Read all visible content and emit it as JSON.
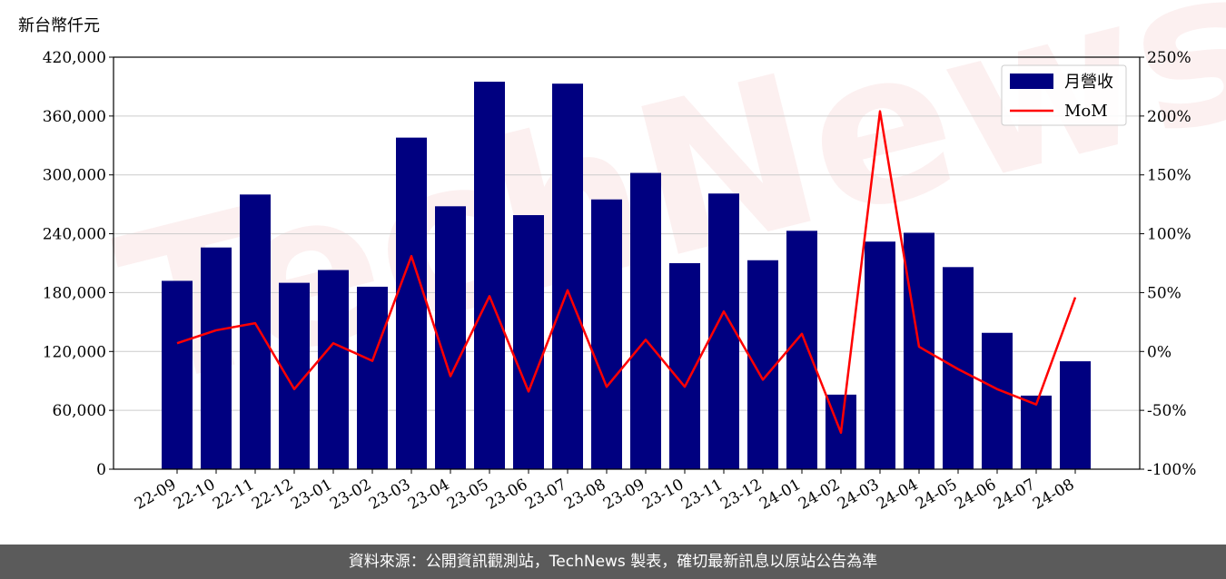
{
  "unit_label": "新台幣仟元",
  "footer_text": "資料來源：公開資訊觀測站，TechNews 製表，確切最新訊息以原站公告為準",
  "watermark_text": "TechNews",
  "colors": {
    "bar": "#000080",
    "line": "#ff0000",
    "grid": "#cccccc",
    "footer_bg": "#5b5b5b"
  },
  "chart_data": {
    "type": "bar",
    "categories": [
      "22-09",
      "22-10",
      "22-11",
      "22-12",
      "23-01",
      "23-02",
      "23-03",
      "23-04",
      "23-05",
      "23-06",
      "23-07",
      "23-08",
      "23-09",
      "23-10",
      "23-11",
      "23-12",
      "24-01",
      "24-02",
      "24-03",
      "24-04",
      "24-05",
      "24-06",
      "24-07",
      "24-08"
    ],
    "series": [
      {
        "name": "月營收",
        "type": "bar",
        "axis": "left",
        "values": [
          192000,
          226000,
          280000,
          190000,
          203000,
          186000,
          338000,
          268000,
          395000,
          259000,
          393000,
          275000,
          302000,
          210000,
          281000,
          213000,
          243000,
          76000,
          232000,
          241000,
          206000,
          139000,
          75000,
          110000
        ]
      },
      {
        "name": "MoM",
        "type": "line",
        "axis": "right",
        "values": [
          7,
          18,
          24,
          -32,
          7,
          -8,
          81,
          -21,
          47,
          -34,
          52,
          -30,
          10,
          -30,
          34,
          -24,
          15,
          -69,
          204,
          4,
          -15,
          -32,
          -45,
          46
        ]
      }
    ],
    "y_left": {
      "range": [
        0,
        420000
      ],
      "ticks": [
        0,
        60000,
        120000,
        180000,
        240000,
        300000,
        360000,
        420000
      ],
      "tick_labels": [
        "0",
        "60,000",
        "120,000",
        "180,000",
        "240,000",
        "300,000",
        "360,000",
        "420,000"
      ]
    },
    "y_right": {
      "range": [
        -100,
        250
      ],
      "ticks": [
        -100,
        -50,
        0,
        50,
        100,
        150,
        200,
        250
      ],
      "tick_labels": [
        "-100%",
        "-50%",
        "0%",
        "50%",
        "100%",
        "150%",
        "200%",
        "250%"
      ]
    },
    "grid": true,
    "legend_position": "top-right",
    "legend": [
      "月營收",
      "MoM"
    ]
  }
}
